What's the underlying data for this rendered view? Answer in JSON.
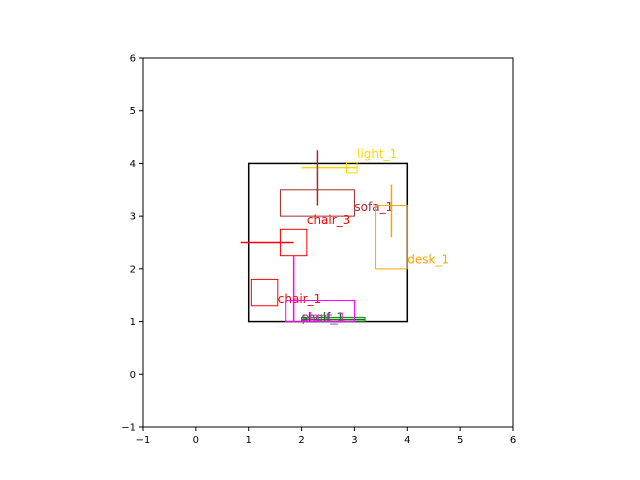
{
  "chart_data": {
    "type": "diagram",
    "title": "",
    "xlabel": "",
    "ylabel": "",
    "xlim": [
      -1,
      6
    ],
    "ylim": [
      -1,
      6
    ],
    "xticks": [
      "−1",
      "0",
      "1",
      "2",
      "3",
      "4",
      "5",
      "6"
    ],
    "yticks": [
      "−1",
      "0",
      "1",
      "2",
      "3",
      "4",
      "5",
      "6"
    ],
    "grid": false,
    "room": {
      "x0": 1,
      "y0": 1,
      "x1": 4,
      "y1": 4,
      "color": "#000000"
    },
    "objects": [
      {
        "label": "light_1",
        "color": "#ffd700",
        "rect": [
          2.85,
          3.82,
          3.05,
          4.02
        ],
        "arrow": [
          2.0,
          3.92,
          3.05,
          3.92
        ],
        "label_at": [
          3.05,
          4.1
        ]
      },
      {
        "label": "sofa_1",
        "color": "#a52a2a",
        "rect": [
          1.6,
          3.0,
          3.0,
          3.5
        ],
        "arrow": [
          2.3,
          3.2,
          2.3,
          4.25
        ],
        "label_at": [
          3.0,
          3.1
        ]
      },
      {
        "label": "desk_1",
        "color": "#ffa500",
        "rect": [
          3.4,
          2.0,
          4.0,
          3.2
        ],
        "arrow": [
          3.7,
          2.6,
          3.7,
          3.6
        ],
        "label_at": [
          4.0,
          2.1
        ]
      },
      {
        "label": "chair_3",
        "color": "#ff0000",
        "rect": [
          1.6,
          2.25,
          2.1,
          2.75
        ],
        "arrow": [
          1.85,
          2.5,
          1.85,
          2.5
        ],
        "label_at": [
          2.1,
          2.85
        ]
      },
      {
        "label": "chair_1",
        "color": "#ff0000",
        "rect": [
          1.05,
          1.3,
          1.55,
          1.8
        ],
        "arrow": [
          0.85,
          2.5,
          1.85,
          2.5
        ],
        "label_at": [
          1.55,
          1.35
        ]
      },
      {
        "label": "shelf_1",
        "color": "#008000",
        "rect": [
          2.0,
          1.0,
          3.2,
          1.08
        ],
        "arrow": [
          2.0,
          1.04,
          3.2,
          1.04
        ],
        "label_at": [
          2.0,
          1.0
        ]
      },
      {
        "label": "plant_1",
        "color": "#ff00ff",
        "rect": [
          1.7,
          1.0,
          3.0,
          1.4
        ],
        "arrow": [
          1.85,
          1.0,
          1.85,
          2.25
        ],
        "label_at": [
          2.0,
          1.0
        ]
      }
    ]
  }
}
